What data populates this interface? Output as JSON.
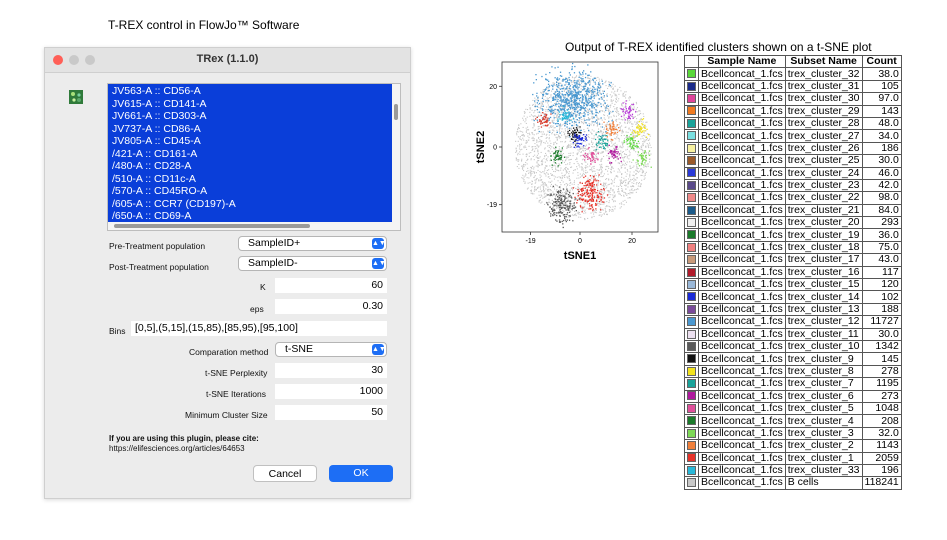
{
  "left_caption": "T-REX control in FlowJo™ Software",
  "right_caption": "Output of T-REX identified clusters shown on a t-SNE plot",
  "dialog": {
    "title": "TRex (1.1.0)",
    "traffic_lights": {
      "close": "#ff5f57",
      "minimize": "#c9c9c9",
      "zoom": "#c9c9c9"
    },
    "app_icon": "cluster-app-icon",
    "parameters": [
      "JV563-A :: CD56-A",
      "JV615-A :: CD141-A",
      "JV661-A :: CD303-A",
      "JV737-A :: CD86-A",
      "JV805-A :: CD45-A",
      "/421-A :: CD161-A",
      "/480-A :: CD28-A",
      "/510-A :: CD11c-A",
      "/570-A :: CD45RO-A",
      "/605-A :: CCR7 (CD197)-A",
      "/650-A :: CD69-A"
    ],
    "pre_label": "Pre-Treatment population",
    "pre_value": "SampleID+",
    "post_label": "Post-Treatment population",
    "post_value": "SampleID-",
    "k_label": "K",
    "k_value": "60",
    "eps_label": "eps",
    "eps_value": "0.30",
    "bins_label": "Bins",
    "bins_value": "[0,5],(5,15],(15,85),[85,95),[95,100]",
    "method_label": "Comparation method",
    "method_value": "t-SNE",
    "perplexity_label": "t-SNE Perplexity",
    "perplexity_value": "30",
    "iterations_label": "t-SNE Iterations",
    "iterations_value": "1000",
    "min_cluster_label": "Minimum Cluster Size",
    "min_cluster_value": "50",
    "cite_line1": "If you are using this plugin, please cite:",
    "cite_line2": "https://elifesciences.org/articles/64653",
    "cancel_label": "Cancel",
    "ok_label": "OK",
    "accent": "#1d6ef5",
    "selection": "#0a3ed9"
  },
  "chart_data": {
    "type": "scatter",
    "xlabel": "tSNE1",
    "ylabel": "tSNE2",
    "x_ticks": [
      "-19",
      "0",
      "20"
    ],
    "y_ticks": [
      "20",
      "0",
      "-19"
    ],
    "grid": false,
    "background_color": "#c8c8c8",
    "clusters": [
      {
        "name": "trex_cluster_12",
        "x": -3,
        "y": 16,
        "color": "#4a98d0"
      },
      {
        "name": "trex_cluster_1",
        "x": 4,
        "y": -15,
        "color": "#e8332a"
      },
      {
        "name": "trex_cluster_10",
        "x": -7,
        "y": -19,
        "color": "#5a5a5a"
      },
      {
        "name": "trex_cluster_6",
        "x": 13,
        "y": -2,
        "color": "#b01a9e"
      },
      {
        "name": "trex_cluster_7",
        "x": 8,
        "y": 2,
        "color": "#1aa39a"
      },
      {
        "name": "trex_cluster_5",
        "x": 4,
        "y": -3,
        "color": "#e0509b"
      },
      {
        "name": "trex_cluster_8",
        "x": 23,
        "y": 6,
        "color": "#f2e21c"
      },
      {
        "name": "trex_cluster_3",
        "x": 24,
        "y": -4,
        "color": "#7ed957"
      },
      {
        "name": "trex_cluster_4",
        "x": -9,
        "y": -3,
        "color": "#1a7a2a"
      },
      {
        "name": "trex_cluster_2",
        "x": 12,
        "y": 6,
        "color": "#f0803c"
      },
      {
        "name": "trex_cluster_9",
        "x": -2,
        "y": 4,
        "color": "#111111"
      },
      {
        "name": "trex_cluster_14",
        "x": 0,
        "y": 3,
        "color": "#1a2ad8"
      },
      {
        "name": "trex_cluster_33",
        "x": -6,
        "y": 10,
        "color": "#28b8d8"
      },
      {
        "name": "trex_cluster_32",
        "x": 20,
        "y": 2,
        "color": "#5ad83a"
      },
      {
        "name": "trex_cluster_22",
        "x": -14,
        "y": 9,
        "color": "#d83a2a"
      },
      {
        "name": "trex_cluster_26",
        "x": 18,
        "y": 12,
        "color": "#b83ad8"
      }
    ]
  },
  "table": {
    "headers": [
      "Sample Name",
      "Subset Name",
      "Count"
    ],
    "rows": [
      {
        "color": "#5ad83a",
        "sample": "Bcellconcat_1.fcs",
        "subset": "trex_cluster_32",
        "count": "38.0"
      },
      {
        "color": "#1a2a8a",
        "sample": "Bcellconcat_1.fcs",
        "subset": "trex_cluster_31",
        "count": "105"
      },
      {
        "color": "#e0449a",
        "sample": "Bcellconcat_1.fcs",
        "subset": "trex_cluster_30",
        "count": "97.0"
      },
      {
        "color": "#f07a20",
        "sample": "Bcellconcat_1.fcs",
        "subset": "trex_cluster_29",
        "count": "143"
      },
      {
        "color": "#1aa39a",
        "sample": "Bcellconcat_1.fcs",
        "subset": "trex_cluster_28",
        "count": "48.0"
      },
      {
        "color": "#7adfe0",
        "sample": "Bcellconcat_1.fcs",
        "subset": "trex_cluster_27",
        "count": "34.0"
      },
      {
        "color": "#f7f1a0",
        "sample": "Bcellconcat_1.fcs",
        "subset": "trex_cluster_26",
        "count": "186"
      },
      {
        "color": "#9a5a2a",
        "sample": "Bcellconcat_1.fcs",
        "subset": "trex_cluster_25",
        "count": "30.0"
      },
      {
        "color": "#2a3ad8",
        "sample": "Bcellconcat_1.fcs",
        "subset": "trex_cluster_24",
        "count": "46.0"
      },
      {
        "color": "#5a4a8a",
        "sample": "Bcellconcat_1.fcs",
        "subset": "trex_cluster_23",
        "count": "42.0"
      },
      {
        "color": "#f08a8a",
        "sample": "Bcellconcat_1.fcs",
        "subset": "trex_cluster_22",
        "count": "98.0"
      },
      {
        "color": "#1a5a8a",
        "sample": "Bcellconcat_1.fcs",
        "subset": "trex_cluster_21",
        "count": "84.0"
      },
      {
        "color": "#f0f0f0",
        "sample": "Bcellconcat_1.fcs",
        "subset": "trex_cluster_20",
        "count": "293"
      },
      {
        "color": "#1a7a2a",
        "sample": "Bcellconcat_1.fcs",
        "subset": "trex_cluster_19",
        "count": "36.0"
      },
      {
        "color": "#f08080",
        "sample": "Bcellconcat_1.fcs",
        "subset": "trex_cluster_18",
        "count": "75.0"
      },
      {
        "color": "#c89a7a",
        "sample": "Bcellconcat_1.fcs",
        "subset": "trex_cluster_17",
        "count": "43.0"
      },
      {
        "color": "#b01a2a",
        "sample": "Bcellconcat_1.fcs",
        "subset": "trex_cluster_16",
        "count": "117"
      },
      {
        "color": "#9ab8d8",
        "sample": "Bcellconcat_1.fcs",
        "subset": "trex_cluster_15",
        "count": "120"
      },
      {
        "color": "#1a2ad8",
        "sample": "Bcellconcat_1.fcs",
        "subset": "trex_cluster_14",
        "count": "102"
      },
      {
        "color": "#7a4a9a",
        "sample": "Bcellconcat_1.fcs",
        "subset": "trex_cluster_13",
        "count": "188"
      },
      {
        "color": "#4a98d0",
        "sample": "Bcellconcat_1.fcs",
        "subset": "trex_cluster_12",
        "count": "11727"
      },
      {
        "color": "#ece0f0",
        "sample": "Bcellconcat_1.fcs",
        "subset": "trex_cluster_11",
        "count": "30.0"
      },
      {
        "color": "#5a5a5a",
        "sample": "Bcellconcat_1.fcs",
        "subset": "trex_cluster_10",
        "count": "1342"
      },
      {
        "color": "#111111",
        "sample": "Bcellconcat_1.fcs",
        "subset": "trex_cluster_9",
        "count": "145"
      },
      {
        "color": "#f2e21c",
        "sample": "Bcellconcat_1.fcs",
        "subset": "trex_cluster_8",
        "count": "278"
      },
      {
        "color": "#1aa39a",
        "sample": "Bcellconcat_1.fcs",
        "subset": "trex_cluster_7",
        "count": "1195"
      },
      {
        "color": "#b01a9e",
        "sample": "Bcellconcat_1.fcs",
        "subset": "trex_cluster_6",
        "count": "273"
      },
      {
        "color": "#e0509b",
        "sample": "Bcellconcat_1.fcs",
        "subset": "trex_cluster_5",
        "count": "1048"
      },
      {
        "color": "#1a7a2a",
        "sample": "Bcellconcat_1.fcs",
        "subset": "trex_cluster_4",
        "count": "208"
      },
      {
        "color": "#7ed957",
        "sample": "Bcellconcat_1.fcs",
        "subset": "trex_cluster_3",
        "count": "32.0"
      },
      {
        "color": "#f0803c",
        "sample": "Bcellconcat_1.fcs",
        "subset": "trex_cluster_2",
        "count": "1143"
      },
      {
        "color": "#e8332a",
        "sample": "Bcellconcat_1.fcs",
        "subset": "trex_cluster_1",
        "count": "2059"
      },
      {
        "color": "#28b8d8",
        "sample": "Bcellconcat_1.fcs",
        "subset": "trex_cluster_33",
        "count": "196"
      },
      {
        "color": "#c8c8c8",
        "sample": "Bcellconcat_1.fcs",
        "subset": "B cells",
        "count": "118241"
      }
    ]
  }
}
